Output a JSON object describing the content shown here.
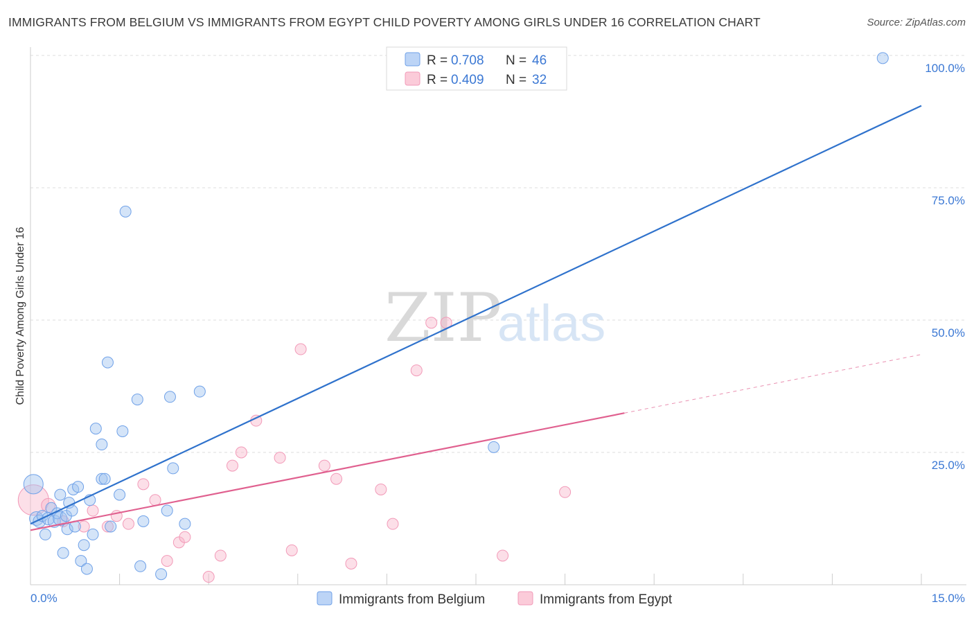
{
  "title": "IMMIGRANTS FROM BELGIUM VS IMMIGRANTS FROM EGYPT CHILD POVERTY AMONG GIRLS UNDER 16 CORRELATION CHART",
  "source": "Source: ZipAtlas.com",
  "watermark": {
    "zip": "ZIP",
    "atlas": "atlas"
  },
  "colors": {
    "belgium": "#6fa1e8",
    "belgium_line": "#2f72cc",
    "egypt": "#f29ab8",
    "egypt_line": "#e0608f",
    "axis_text": "#3b78d4"
  },
  "chart_data": {
    "type": "scatter",
    "ylabel": "Child Poverty Among Girls Under 16",
    "xlabel": "",
    "xlim": [
      0,
      15
    ],
    "ylim": [
      0,
      100
    ],
    "x_tick_labels": [
      {
        "value": 0,
        "label": "0.0%"
      },
      {
        "value": 15,
        "label": "15.0%"
      }
    ],
    "y_tick_labels": [
      {
        "value": 25,
        "label": "25.0%"
      },
      {
        "value": 50,
        "label": "50.0%"
      },
      {
        "value": 75,
        "label": "75.0%"
      },
      {
        "value": 100,
        "label": "100.0%"
      }
    ],
    "legend": [
      {
        "name": "Immigrants from Belgium",
        "r_label": "R = ",
        "r": "0.708",
        "n_label": "N = ",
        "n": "46"
      },
      {
        "name": "Immigrants from Egypt",
        "r_label": "R = ",
        "r": "0.409",
        "n_label": "N = ",
        "n": "32"
      }
    ],
    "series": [
      {
        "name": "Immigrants from Belgium",
        "trend": {
          "x0": 0.0,
          "y0": 11.5,
          "x1": 15.0,
          "y1": 90.5,
          "solid_to": 15.0
        },
        "points": [
          [
            0.05,
            19.0,
            14
          ],
          [
            0.1,
            12.5,
            10
          ],
          [
            0.15,
            12.0,
            9
          ],
          [
            0.2,
            13.0,
            8
          ],
          [
            0.25,
            9.5,
            8
          ],
          [
            0.3,
            12.5,
            9
          ],
          [
            0.35,
            14.5,
            8
          ],
          [
            0.4,
            12.0,
            9
          ],
          [
            0.45,
            13.5,
            8
          ],
          [
            0.5,
            17.0,
            8
          ],
          [
            0.5,
            12.5,
            10
          ],
          [
            0.55,
            6.0,
            8
          ],
          [
            0.6,
            13.0,
            8
          ],
          [
            0.62,
            10.5,
            8
          ],
          [
            0.65,
            15.5,
            8
          ],
          [
            0.7,
            14.0,
            8
          ],
          [
            0.72,
            18.0,
            8
          ],
          [
            0.75,
            11.0,
            8
          ],
          [
            0.8,
            18.5,
            8
          ],
          [
            0.85,
            4.5,
            8
          ],
          [
            0.9,
            7.5,
            8
          ],
          [
            0.95,
            3.0,
            8
          ],
          [
            1.0,
            16.0,
            8
          ],
          [
            1.05,
            9.5,
            8
          ],
          [
            1.1,
            29.5,
            8
          ],
          [
            1.2,
            20.0,
            8
          ],
          [
            1.2,
            26.5,
            8
          ],
          [
            1.25,
            20.0,
            8
          ],
          [
            1.3,
            42.0,
            8
          ],
          [
            1.35,
            11.0,
            8
          ],
          [
            1.5,
            17.0,
            8
          ],
          [
            1.55,
            29.0,
            8
          ],
          [
            1.6,
            70.5,
            8
          ],
          [
            1.8,
            35.0,
            8
          ],
          [
            1.85,
            3.5,
            8
          ],
          [
            1.9,
            12.0,
            8
          ],
          [
            2.2,
            2.0,
            8
          ],
          [
            2.3,
            14.0,
            8
          ],
          [
            2.35,
            35.5,
            8
          ],
          [
            2.4,
            22.0,
            8
          ],
          [
            2.6,
            11.5,
            8
          ],
          [
            2.85,
            36.5,
            8
          ],
          [
            7.8,
            26.0,
            8
          ],
          [
            14.35,
            99.5,
            8
          ]
        ]
      },
      {
        "name": "Immigrants from Egypt",
        "trend": {
          "x0": 0.0,
          "y0": 10.3,
          "x1": 15.0,
          "y1": 43.5,
          "solid_to": 10.0
        },
        "points": [
          [
            0.05,
            16.0,
            22
          ],
          [
            0.3,
            15.0,
            10
          ],
          [
            0.55,
            12.0,
            8
          ],
          [
            0.9,
            11.0,
            8
          ],
          [
            1.05,
            14.0,
            8
          ],
          [
            1.3,
            11.0,
            8
          ],
          [
            1.45,
            13.0,
            8
          ],
          [
            1.65,
            11.5,
            8
          ],
          [
            1.9,
            19.0,
            8
          ],
          [
            2.1,
            16.0,
            8
          ],
          [
            2.3,
            4.5,
            8
          ],
          [
            2.5,
            8.0,
            8
          ],
          [
            2.6,
            9.0,
            8
          ],
          [
            3.0,
            1.5,
            8
          ],
          [
            3.2,
            5.5,
            8
          ],
          [
            3.4,
            22.5,
            8
          ],
          [
            3.55,
            25.0,
            8
          ],
          [
            3.8,
            31.0,
            8
          ],
          [
            4.2,
            24.0,
            8
          ],
          [
            4.4,
            6.5,
            8
          ],
          [
            4.55,
            44.5,
            8
          ],
          [
            4.95,
            22.5,
            8
          ],
          [
            5.15,
            20.0,
            8
          ],
          [
            5.4,
            4.0,
            8
          ],
          [
            5.9,
            18.0,
            8
          ],
          [
            6.1,
            11.5,
            8
          ],
          [
            6.5,
            40.5,
            8
          ],
          [
            6.75,
            49.5,
            8
          ],
          [
            7.0,
            49.5,
            8
          ],
          [
            7.95,
            5.5,
            8
          ],
          [
            9.0,
            17.5,
            8
          ]
        ]
      }
    ]
  }
}
